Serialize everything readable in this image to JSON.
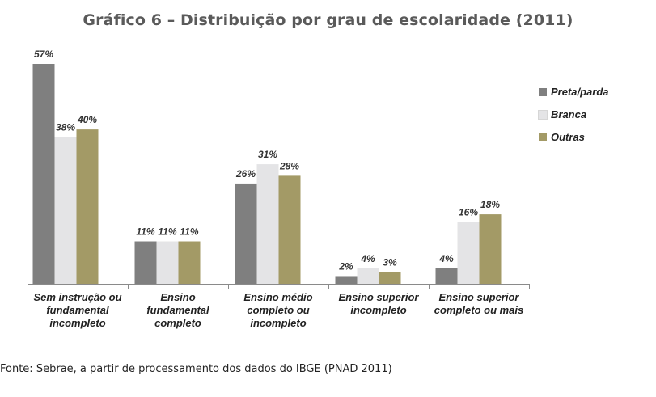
{
  "title": "Gráfico 6 – Distribuição por grau de escolaridade (2011)",
  "source": "Fonte: Sebrae, a partir de processamento dos dados do IBGE (PNAD 2011)",
  "chart_data": {
    "type": "bar",
    "title": "Gráfico 6 – Distribuição por grau de escolaridade (2011)",
    "categories": [
      [
        "Sem instrução ou",
        "fundamental",
        "incompleto"
      ],
      [
        "Ensino",
        "fundamental",
        "completo"
      ],
      [
        "Ensino médio",
        "completo ou",
        "incompleto"
      ],
      [
        "Ensino superior",
        "incompleto"
      ],
      [
        "Ensino superior",
        "completo ou mais"
      ]
    ],
    "series": [
      {
        "name": "Preta/parda",
        "color": "#7f7f7f",
        "values": [
          57,
          11,
          26,
          2,
          4
        ]
      },
      {
        "name": "Branca",
        "color": "#e4e4e6",
        "values": [
          38,
          11,
          31,
          4,
          16
        ]
      },
      {
        "name": "Outras",
        "color": "#a39a66",
        "values": [
          40,
          11,
          28,
          3,
          18
        ]
      }
    ],
    "value_suffix": "%",
    "ylim": [
      0,
      57
    ],
    "grid": false,
    "legend": "right"
  }
}
